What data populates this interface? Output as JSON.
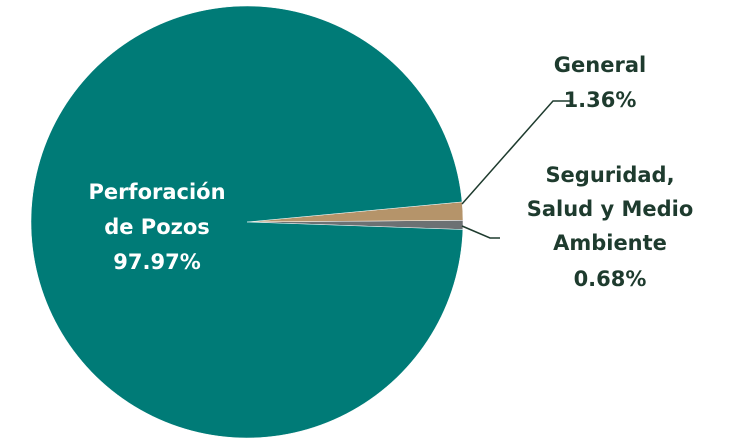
{
  "chart_data": {
    "type": "pie",
    "categories": [
      "Perforación de Pozos",
      "General",
      "Seguridad, Salud y Medio Ambiente"
    ],
    "values": [
      97.97,
      1.36,
      0.68
    ],
    "value_labels": [
      "97.97%",
      "1.36%",
      "0.68%"
    ],
    "colors": [
      "#007b77",
      "#b5946a",
      "#6c7173"
    ]
  }
}
